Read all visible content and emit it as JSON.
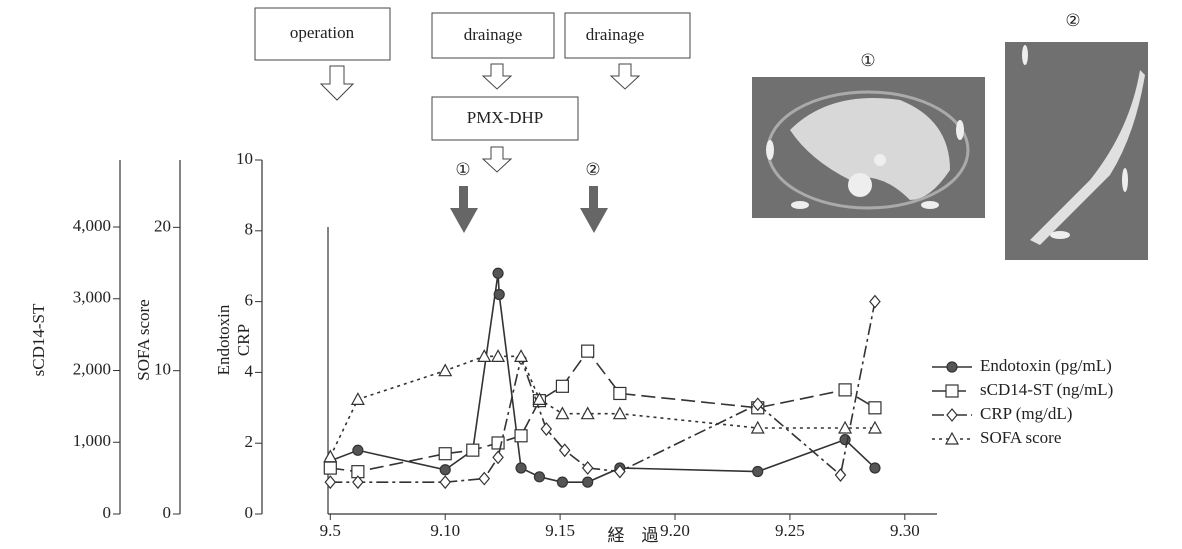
{
  "chart_data": {
    "type": "line",
    "annotations": [
      "operation",
      "drainage",
      "drainage",
      "PMX-DHP",
      "①",
      "②"
    ],
    "image_labels": [
      "①",
      "②"
    ],
    "x_label": "経　過",
    "y_label": [
      "Endotoxin",
      "CRP"
    ],
    "y2_label": "SOFA score",
    "y3_label": "sCD14-ST",
    "xlim": [
      4.9,
      31.4
    ],
    "xticks": [
      {
        "value": 5,
        "label": "9.5"
      },
      {
        "value": 10,
        "label": "9.10"
      },
      {
        "value": 15,
        "label": "9.15"
      },
      {
        "value": 20,
        "label": "9.20"
      },
      {
        "value": 25,
        "label": "9.25"
      },
      {
        "value": 30,
        "label": "9.30"
      }
    ],
    "ylim": [
      0,
      10
    ],
    "yticks": [
      0,
      2,
      4,
      6,
      8,
      10
    ],
    "y2lim": [
      0,
      24.7
    ],
    "y2ticks": [
      0,
      10,
      20
    ],
    "y3lim": [
      0,
      4934
    ],
    "y3ticks": [
      0,
      {
        "value": 1000,
        "label": "1,000"
      },
      {
        "value": 2000,
        "label": "2,000"
      },
      {
        "value": 3000,
        "label": "3,000"
      },
      {
        "value": 4000,
        "label": "4,000"
      }
    ],
    "series": [
      {
        "name": "Endotoxin (pg/mL)",
        "color": "#333333",
        "dash": "solid",
        "marker": "circle",
        "x": [
          5,
          6.2,
          10,
          11.2,
          12.3,
          12.35,
          13.3,
          14.1,
          15.1,
          16.2,
          17.6,
          23.6,
          27.4,
          28.7
        ],
        "values": [
          1.5,
          1.8,
          1.25,
          1.8,
          6.8,
          6.2,
          1.3,
          1.05,
          0.9,
          0.9,
          1.3,
          1.2,
          2.1,
          1.3
        ]
      },
      {
        "name": "sCD14-ST (ng/mL)",
        "color": "#333333",
        "dash": "dashed",
        "marker": "square",
        "axis": "y3",
        "x": [
          5,
          6.2,
          10,
          11.2,
          12.3,
          13.3,
          14.1,
          15.1,
          16.2,
          17.6,
          23.6,
          27.4,
          28.7
        ],
        "values": [
          640,
          590,
          840,
          890,
          990,
          1090,
          1580,
          1780,
          2270,
          1680,
          1480,
          1730,
          1480
        ]
      },
      {
        "name": "CRP (mg/dL)",
        "color": "#333333",
        "dash": "dashdot",
        "marker": "diamond",
        "x": [
          5,
          6.2,
          10,
          11.7,
          12.3,
          13.3,
          14.4,
          15.2,
          16.2,
          17.6,
          23.6,
          27.2,
          28.7
        ],
        "values": [
          0.9,
          0.9,
          0.9,
          1.0,
          1.6,
          4.4,
          2.4,
          1.8,
          1.3,
          1.2,
          3.1,
          1.1,
          6.0
        ]
      },
      {
        "name": "SOFA score",
        "color": "#333333",
        "dash": "dotted",
        "marker": "triangle",
        "axis": "y2",
        "x": [
          5,
          6.2,
          10,
          11.7,
          12.3,
          13.3,
          14.1,
          15.1,
          16.2,
          17.6,
          23.6,
          27.4,
          28.7
        ],
        "values": [
          4,
          8,
          10,
          11,
          11,
          11,
          8,
          7,
          7,
          7,
          6,
          6,
          6
        ]
      }
    ]
  }
}
